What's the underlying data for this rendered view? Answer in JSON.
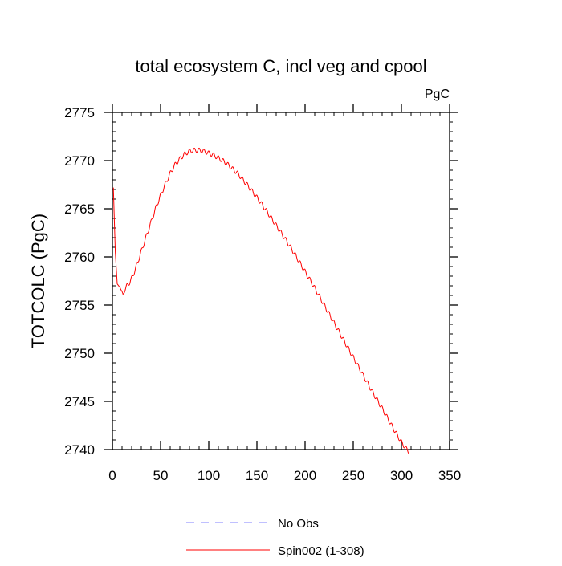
{
  "chart_data": {
    "type": "line",
    "title": "total ecosystem C, incl veg and cpool",
    "units_label": "PgC",
    "xlabel": "",
    "ylabel": "TOTCOLC  (PgC)",
    "xlim": [
      0,
      350
    ],
    "ylim": [
      2740,
      2775
    ],
    "x_ticks": [
      0,
      50,
      100,
      150,
      200,
      250,
      300,
      350
    ],
    "y_ticks": [
      2740,
      2745,
      2750,
      2755,
      2760,
      2765,
      2770,
      2775
    ],
    "x_tick_labels": [
      "0",
      "50",
      "100",
      "150",
      "200",
      "250",
      "300",
      "350"
    ],
    "y_tick_labels": [
      "2740",
      "2745",
      "2750",
      "2755",
      "2760",
      "2765",
      "2770",
      "2775"
    ],
    "grid": false,
    "legend": {
      "position": "bottom",
      "entries": [
        {
          "label": "No Obs",
          "color": "#8080ff",
          "style": "dashed"
        },
        {
          "label": "Spin002 (1-308)",
          "color": "#ff0000",
          "style": "solid"
        }
      ]
    },
    "series": [
      {
        "name": "Spin002 (1-308)",
        "color": "#ff0000",
        "x": [
          1,
          3,
          5,
          8,
          11,
          13,
          15,
          18,
          21,
          25,
          30,
          35,
          40,
          45,
          50,
          55,
          60,
          65,
          70,
          75,
          80,
          85,
          90,
          95,
          100,
          105,
          110,
          115,
          120,
          130,
          140,
          150,
          160,
          170,
          180,
          190,
          200,
          210,
          220,
          230,
          240,
          250,
          260,
          270,
          280,
          290,
          300,
          305,
          308
        ],
        "y": [
          2767.2,
          2760.5,
          2757.2,
          2756.8,
          2756.2,
          2756.8,
          2757.2,
          2757.6,
          2758.2,
          2759.3,
          2760.8,
          2762.3,
          2763.8,
          2765.3,
          2766.6,
          2767.8,
          2768.9,
          2769.8,
          2770.4,
          2770.9,
          2771.2,
          2771.3,
          2771.3,
          2771.2,
          2771.0,
          2770.8,
          2770.5,
          2770.2,
          2769.8,
          2768.9,
          2767.7,
          2766.4,
          2765.0,
          2763.5,
          2762.0,
          2760.4,
          2758.7,
          2757.0,
          2755.2,
          2753.4,
          2751.6,
          2749.8,
          2748.0,
          2746.2,
          2744.5,
          2742.7,
          2741.0,
          2740.3,
          2740.0
        ],
        "seasonal_ripple_amplitude": 0.45,
        "ripple_period": 5
      },
      {
        "name": "No Obs",
        "color": "#8080ff",
        "x": [],
        "y": []
      }
    ]
  }
}
